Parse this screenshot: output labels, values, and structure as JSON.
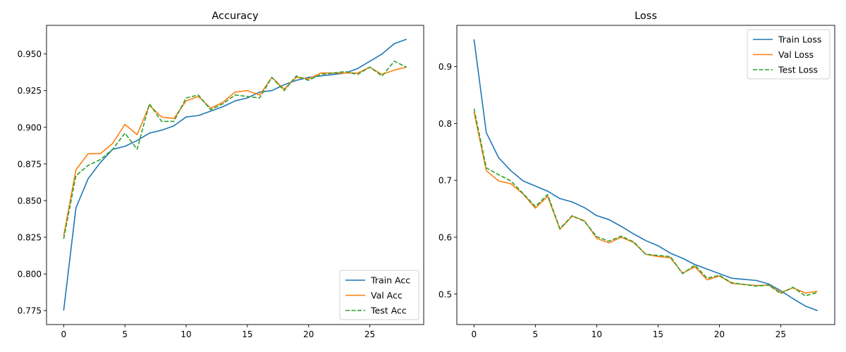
{
  "chart_data": [
    {
      "type": "line",
      "title": "Accuracy",
      "xlabel": "",
      "ylabel": "",
      "xlim": [
        -1.4,
        29.4
      ],
      "ylim": [
        0.7655,
        0.9695
      ],
      "xticks": [
        0,
        5,
        10,
        15,
        20,
        25
      ],
      "xtick_labels": [
        "0",
        "5",
        "10",
        "15",
        "20",
        "25"
      ],
      "yticks": [
        0.775,
        0.8,
        0.825,
        0.85,
        0.875,
        0.9,
        0.925,
        0.95
      ],
      "ytick_labels": [
        "0.775",
        "0.800",
        "0.825",
        "0.850",
        "0.875",
        "0.900",
        "0.925",
        "0.950"
      ],
      "grid": false,
      "legend_position": "lower-right",
      "x": [
        0,
        1,
        2,
        3,
        4,
        5,
        6,
        7,
        8,
        9,
        10,
        11,
        12,
        13,
        14,
        15,
        16,
        17,
        18,
        19,
        20,
        21,
        22,
        23,
        24,
        25,
        26,
        27,
        28
      ],
      "series": [
        {
          "name": "Train Acc",
          "color": "#1f77b4",
          "dash": "solid",
          "values": [
            0.775,
            0.845,
            0.865,
            0.876,
            0.885,
            0.887,
            0.891,
            0.896,
            0.898,
            0.901,
            0.907,
            0.908,
            0.911,
            0.914,
            0.918,
            0.92,
            0.924,
            0.925,
            0.929,
            0.932,
            0.934,
            0.935,
            0.936,
            0.937,
            0.94,
            0.945,
            0.95,
            0.957,
            0.96
          ]
        },
        {
          "name": "Val Acc",
          "color": "#ff7f0e",
          "dash": "solid",
          "values": [
            0.826,
            0.871,
            0.882,
            0.882,
            0.889,
            0.902,
            0.895,
            0.915,
            0.907,
            0.906,
            0.918,
            0.921,
            0.913,
            0.917,
            0.924,
            0.925,
            0.922,
            0.934,
            0.926,
            0.934,
            0.933,
            0.937,
            0.937,
            0.937,
            0.937,
            0.941,
            0.936,
            0.939,
            0.941
          ]
        },
        {
          "name": "Test Acc",
          "color": "#2ca02c",
          "dash": "dashed",
          "values": [
            0.824,
            0.867,
            0.874,
            0.878,
            0.885,
            0.896,
            0.885,
            0.916,
            0.904,
            0.904,
            0.92,
            0.922,
            0.912,
            0.916,
            0.922,
            0.921,
            0.92,
            0.934,
            0.925,
            0.935,
            0.932,
            0.936,
            0.937,
            0.938,
            0.936,
            0.941,
            0.935,
            0.945,
            0.941
          ]
        }
      ]
    },
    {
      "type": "line",
      "title": "Loss",
      "xlabel": "",
      "ylabel": "",
      "xlim": [
        -1.4,
        29.4
      ],
      "ylim": [
        0.4465,
        0.9725
      ],
      "xticks": [
        0,
        5,
        10,
        15,
        20,
        25
      ],
      "xtick_labels": [
        "0",
        "5",
        "10",
        "15",
        "20",
        "25"
      ],
      "yticks": [
        0.5,
        0.6,
        0.7,
        0.8,
        0.9
      ],
      "ytick_labels": [
        "0.5",
        "0.6",
        "0.7",
        "0.8",
        "0.9"
      ],
      "grid": false,
      "legend_position": "upper-right",
      "x": [
        0,
        1,
        2,
        3,
        4,
        5,
        6,
        7,
        8,
        9,
        10,
        11,
        12,
        13,
        14,
        15,
        16,
        17,
        18,
        19,
        20,
        21,
        22,
        23,
        24,
        25,
        26,
        27,
        28
      ],
      "series": [
        {
          "name": "Train Loss",
          "color": "#1f77b4",
          "dash": "solid",
          "values": [
            0.948,
            0.784,
            0.74,
            0.717,
            0.699,
            0.69,
            0.681,
            0.668,
            0.662,
            0.652,
            0.638,
            0.631,
            0.619,
            0.606,
            0.594,
            0.585,
            0.572,
            0.563,
            0.552,
            0.544,
            0.536,
            0.528,
            0.526,
            0.524,
            0.518,
            0.506,
            0.492,
            0.479,
            0.471
          ]
        },
        {
          "name": "Val Loss",
          "color": "#ff7f0e",
          "dash": "solid",
          "values": [
            0.82,
            0.717,
            0.699,
            0.694,
            0.676,
            0.651,
            0.672,
            0.614,
            0.637,
            0.629,
            0.598,
            0.59,
            0.6,
            0.591,
            0.57,
            0.566,
            0.564,
            0.537,
            0.548,
            0.525,
            0.532,
            0.519,
            0.517,
            0.515,
            0.516,
            0.503,
            0.511,
            0.502,
            0.505
          ]
        },
        {
          "name": "Test Loss",
          "color": "#2ca02c",
          "dash": "dashed",
          "values": [
            0.826,
            0.722,
            0.71,
            0.699,
            0.677,
            0.654,
            0.675,
            0.615,
            0.638,
            0.628,
            0.601,
            0.593,
            0.602,
            0.592,
            0.57,
            0.568,
            0.566,
            0.536,
            0.551,
            0.528,
            0.533,
            0.52,
            0.517,
            0.514,
            0.516,
            0.501,
            0.512,
            0.497,
            0.503
          ]
        }
      ]
    }
  ]
}
